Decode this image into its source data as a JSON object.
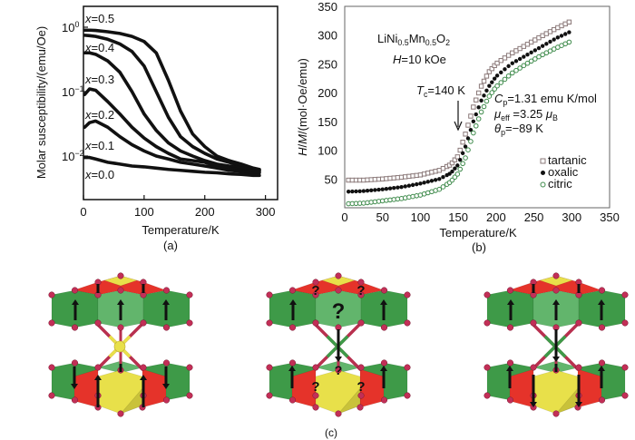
{
  "panel_labels": {
    "a": "(a)",
    "b": "(b)",
    "c": "(c)"
  },
  "chart_data": [
    {
      "panel": "(a)",
      "type": "line",
      "xlabel": "Temperature/K",
      "ylabel": "Molar susceptibility/(emu/Oe)",
      "yscale": "log",
      "xlim": [
        0,
        320
      ],
      "ylim": [
        0.0021,
        2.1
      ],
      "grid": false,
      "x_ticks": [
        0,
        100,
        200,
        300
      ],
      "y_ticks": [
        {
          "value": 1,
          "base": "10",
          "exp": "0"
        },
        {
          "value": 0.1,
          "base": "10",
          "exp": "−1"
        },
        {
          "value": 0.01,
          "base": "10",
          "exp": "−2"
        }
      ],
      "x": [
        2,
        10,
        20,
        40,
        60,
        80,
        100,
        120,
        140,
        160,
        180,
        200,
        220,
        240,
        260,
        280,
        290
      ],
      "series": [
        {
          "name": "x=0.5",
          "values": [
            0.9,
            0.9,
            0.89,
            0.85,
            0.8,
            0.72,
            0.6,
            0.4,
            0.15,
            0.05,
            0.022,
            0.014,
            0.01,
            0.0085,
            0.0075,
            0.0065,
            0.0062
          ]
        },
        {
          "name": "x=0.4",
          "values": [
            0.75,
            0.74,
            0.72,
            0.65,
            0.55,
            0.42,
            0.25,
            0.1,
            0.04,
            0.02,
            0.014,
            0.011,
            0.009,
            0.008,
            0.007,
            0.0063,
            0.006
          ]
        },
        {
          "name": "x=0.3",
          "values": [
            0.4,
            0.4,
            0.38,
            0.3,
            0.2,
            0.1,
            0.045,
            0.025,
            0.016,
            0.012,
            0.01,
            0.0085,
            0.0075,
            0.007,
            0.0065,
            0.006,
            0.006
          ]
        },
        {
          "name": "x=0.2",
          "values": [
            0.09,
            0.11,
            0.105,
            0.07,
            0.045,
            0.028,
            0.019,
            0.014,
            0.011,
            0.009,
            0.0085,
            0.008,
            0.007,
            0.0065,
            0.006,
            0.0058,
            0.0057
          ]
        },
        {
          "name": "x=0.1",
          "values": [
            0.028,
            0.033,
            0.035,
            0.028,
            0.02,
            0.015,
            0.012,
            0.01,
            0.009,
            0.008,
            0.0075,
            0.007,
            0.0065,
            0.006,
            0.0058,
            0.0055,
            0.0055
          ]
        },
        {
          "name": "x=0.0",
          "values": [
            0.0095,
            0.0095,
            0.009,
            0.008,
            0.0075,
            0.007,
            0.0068,
            0.0065,
            0.0062,
            0.006,
            0.0058,
            0.0056,
            0.0055,
            0.0053,
            0.0052,
            0.005,
            0.005
          ]
        }
      ]
    },
    {
      "panel": "(b)",
      "type": "scatter",
      "xlabel": "Temperature/K",
      "ylabel": "H/M/(mol·Oe/emu)",
      "xlim": [
        0,
        350
      ],
      "ylim": [
        0,
        350
      ],
      "grid": false,
      "x_ticks": [
        0,
        50,
        100,
        150,
        200,
        250,
        300,
        350
      ],
      "y_ticks": [
        50,
        100,
        150,
        200,
        250,
        300,
        350
      ],
      "legend_position": "bottom-right",
      "x": [
        5,
        25,
        50,
        75,
        100,
        125,
        140,
        150,
        160,
        170,
        180,
        190,
        200,
        220,
        240,
        260,
        280,
        300
      ],
      "series": [
        {
          "name": "tartanic",
          "marker": "open-square",
          "color": "#8a7878",
          "values": [
            48,
            48,
            50,
            53,
            57,
            65,
            75,
            90,
            130,
            175,
            210,
            235,
            250,
            268,
            283,
            298,
            312,
            325
          ]
        },
        {
          "name": "oxalic",
          "marker": "filled-circle",
          "color": "#111111",
          "values": [
            28,
            29,
            32,
            36,
            42,
            50,
            60,
            75,
            108,
            150,
            185,
            210,
            228,
            250,
            265,
            280,
            295,
            307
          ]
        },
        {
          "name": "citric",
          "marker": "open-circle",
          "color": "#3d8a4a",
          "values": [
            7,
            8,
            12,
            16,
            22,
            32,
            45,
            60,
            88,
            130,
            165,
            192,
            210,
            233,
            250,
            265,
            278,
            290
          ]
        }
      ],
      "annotations": {
        "compound": [
          [
            "Li",
            ""
          ],
          [
            "Ni",
            ""
          ],
          [
            "0.5",
            "sub"
          ],
          [
            "Mn",
            ""
          ],
          [
            "0.5",
            "sub"
          ],
          [
            "O",
            ""
          ],
          [
            "2",
            "sub"
          ]
        ],
        "field": [
          [
            "H",
            "i"
          ],
          [
            "=10 kOe",
            ""
          ]
        ],
        "tc": [
          [
            "T",
            "i"
          ],
          [
            "c",
            "sub"
          ],
          [
            "=140 K",
            ""
          ]
        ],
        "cp": [
          [
            "C",
            "i"
          ],
          [
            "p",
            "sub"
          ],
          [
            "=1.31 emu K/mol",
            ""
          ]
        ],
        "mu": [
          [
            "μ",
            "i"
          ],
          [
            "eff",
            "sub"
          ],
          [
            " =3.25 ",
            ""
          ],
          [
            "μ",
            "i"
          ],
          [
            "B",
            "sub"
          ]
        ],
        "theta": [
          [
            "θ",
            "i"
          ],
          [
            "p",
            "sub"
          ],
          [
            "=−89 K",
            ""
          ]
        ]
      }
    }
  ],
  "diagram": {
    "question_mark": "?",
    "colors": {
      "green": "#3e9a48",
      "light_green": "#62b56c",
      "red": "#e5332a",
      "yellow": "#e8e04a",
      "atom": "#c22f57",
      "bond": "#b8304f"
    }
  }
}
